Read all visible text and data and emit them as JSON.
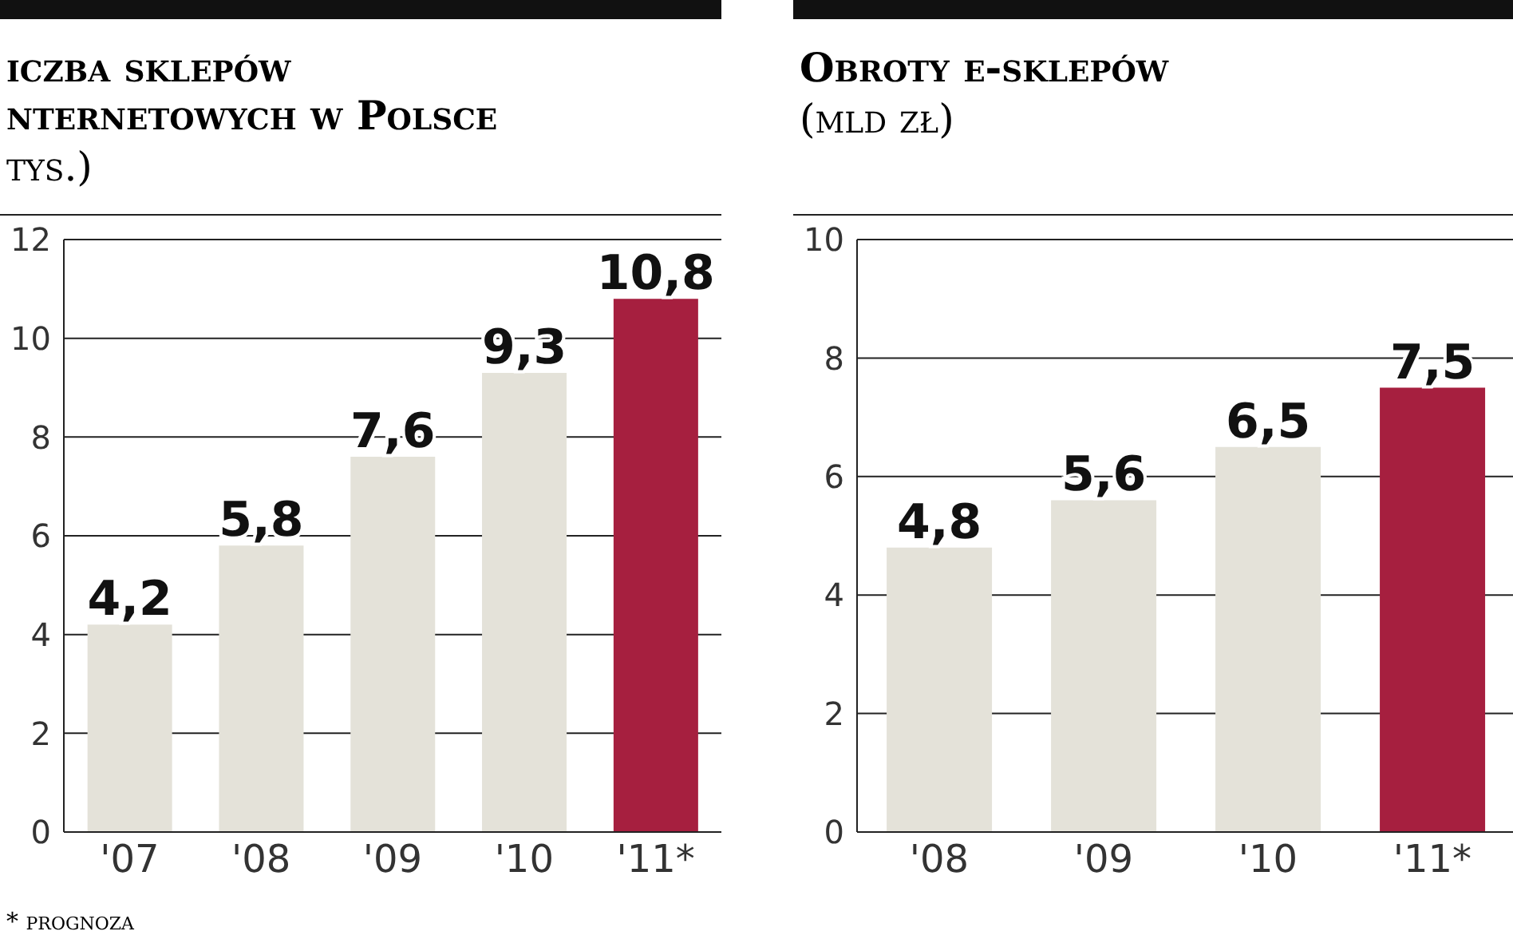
{
  "chart_data": [
    {
      "type": "bar",
      "title": "iczba sklepów\nnternetowych w Polsce",
      "subtitle": "tys.)",
      "categories": [
        "'07",
        "'08",
        "'09",
        "'10",
        "'11*"
      ],
      "values": [
        4.2,
        5.8,
        7.6,
        9.3,
        10.8
      ],
      "colors": [
        "#e4e2d9",
        "#e4e2d9",
        "#e4e2d9",
        "#e4e2d9",
        "#a61f3f"
      ],
      "ylim": [
        0,
        12
      ],
      "yticks": [
        0,
        2,
        4,
        6,
        8,
        10,
        12
      ],
      "grid": "y",
      "value_labels": [
        "4,2",
        "5,8",
        "7,6",
        "9,3",
        "10,8"
      ],
      "annotations": [
        "* prognoza"
      ]
    },
    {
      "type": "bar",
      "title": "Obroty e-sklepów",
      "subtitle": "(mld zł)",
      "categories": [
        "'08",
        "'09",
        "'10",
        "'11*"
      ],
      "values": [
        4.8,
        5.6,
        6.5,
        7.5
      ],
      "colors": [
        "#e4e2d9",
        "#e4e2d9",
        "#e4e2d9",
        "#a61f3f"
      ],
      "ylim": [
        0,
        10
      ],
      "yticks": [
        0,
        2,
        4,
        6,
        8,
        10
      ],
      "grid": "y",
      "value_labels": [
        "4,8",
        "5,6",
        "6,5",
        "7,5"
      ]
    }
  ]
}
